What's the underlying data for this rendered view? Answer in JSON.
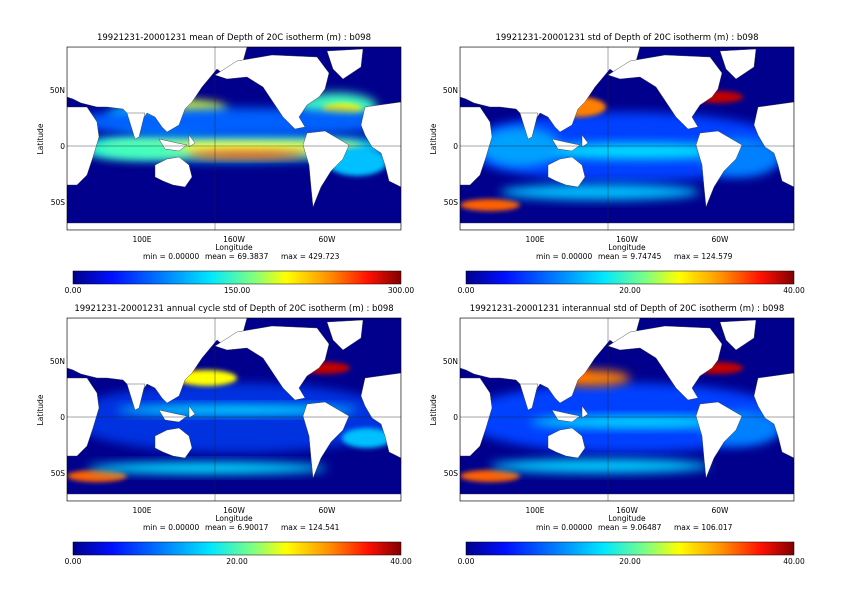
{
  "panels": [
    {
      "title": "19921231-20001231 mean of Depth of 20C isotherm (m) : b098",
      "ylabel": "Latitude",
      "xlabel": "Longitude",
      "lat_ticks": [
        "50N",
        "0",
        "50S"
      ],
      "lon_ticks": [
        "100E",
        "160W",
        "60W"
      ],
      "stats": [
        "min = 0.00000",
        "mean = 69.3837",
        "max = 429.723"
      ],
      "colorbar_ticks": [
        "0.00",
        "150.00",
        "300.00"
      ]
    },
    {
      "title": "19921231-20001231 std of Depth of 20C isotherm (m) : b098",
      "ylabel": "Latitude",
      "xlabel": "Longitude",
      "lat_ticks": [
        "50N",
        "0",
        "50S"
      ],
      "lon_ticks": [
        "100E",
        "160W",
        "60W"
      ],
      "stats": [
        "min = 0.00000",
        "mean = 9.74745",
        "max = 124.579"
      ],
      "colorbar_ticks": [
        "0.00",
        "20.00",
        "40.00"
      ]
    },
    {
      "title": "19921231-20001231 annual cycle std of Depth of 20C isotherm (m) : b098",
      "ylabel": "Latitude",
      "xlabel": "Longitude",
      "lat_ticks": [
        "50N",
        "0",
        "50S"
      ],
      "lon_ticks": [
        "100E",
        "160W",
        "60W"
      ],
      "stats": [
        "min = 0.00000",
        "mean = 6.90017",
        "max = 124.541"
      ],
      "colorbar_ticks": [
        "0.00",
        "20.00",
        "40.00"
      ]
    },
    {
      "title": "19921231-20001231 interannual std of Depth of 20C isotherm (m) : b098",
      "ylabel": "Latitude",
      "xlabel": "Longitude",
      "lat_ticks": [
        "50N",
        "0",
        "50S"
      ],
      "lon_ticks": [
        "100E",
        "160W",
        "60W"
      ],
      "stats": [
        "min = 0.00000",
        "mean = 9.06487",
        "max = 106.017"
      ],
      "colorbar_ticks": [
        "0.00",
        "20.00",
        "40.00"
      ]
    }
  ]
}
